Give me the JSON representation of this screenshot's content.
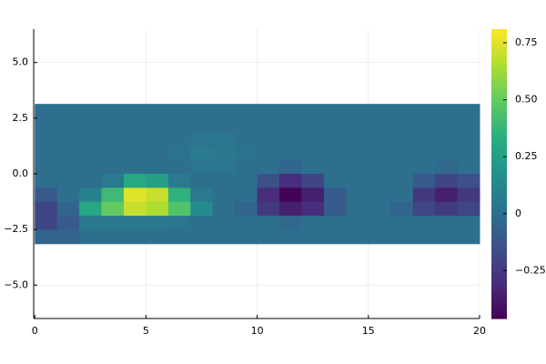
{
  "chart_data": {
    "type": "heatmap",
    "colormap": "viridis",
    "x_extent": [
      0,
      20
    ],
    "y_extent": [
      -3.14,
      3.14
    ],
    "xlim": [
      -0.05,
      20
    ],
    "ylim": [
      -6.5,
      6.5
    ],
    "xticks": [
      0,
      5,
      10,
      15,
      20
    ],
    "yticks": [
      {
        "value": 5,
        "label": "5.0"
      },
      {
        "value": 2.5,
        "label": "2.5"
      },
      {
        "value": 0,
        "label": "0.0"
      },
      {
        "value": -2.5,
        "label": "−2.5"
      },
      {
        "value": -5,
        "label": "−5.0"
      }
    ],
    "clim": [
      -0.46,
      0.81
    ],
    "cticks": [
      {
        "value": 0.75,
        "label": "0.75"
      },
      {
        "value": 0.5,
        "label": "0.50"
      },
      {
        "value": 0.25,
        "label": "0.25"
      },
      0,
      {
        "value": -0.25,
        "label": "−0.25"
      }
    ],
    "grid": true,
    "z": [
      [
        0,
        0,
        0,
        0,
        0,
        0,
        0,
        0,
        0,
        0,
        0,
        0,
        0,
        0,
        0,
        0,
        0,
        0,
        0,
        0
      ],
      [
        0,
        0,
        0,
        0,
        0,
        0,
        0,
        0,
        0,
        0,
        0,
        0,
        0,
        0,
        0,
        0,
        0,
        0,
        0,
        0
      ],
      [
        0,
        0,
        0,
        0,
        0,
        0,
        0,
        0.03,
        0.03,
        0,
        0,
        0,
        0,
        0,
        0,
        0,
        0,
        0,
        0,
        0
      ],
      [
        0,
        0,
        0,
        0,
        0,
        0,
        0.02,
        0.06,
        0.05,
        0.02,
        0,
        0,
        0,
        0,
        0,
        0,
        0,
        0,
        0,
        0
      ],
      [
        0,
        0,
        0,
        0,
        0,
        0,
        0,
        0.03,
        0.03,
        0,
        0,
        -0.05,
        0,
        0,
        0,
        0,
        0,
        0,
        -0.03,
        0
      ],
      [
        0,
        0,
        0,
        0.05,
        0.3,
        0.25,
        0.05,
        0,
        0,
        0,
        -0.15,
        -0.3,
        -0.2,
        0,
        0,
        0,
        0,
        -0.1,
        -0.2,
        -0.15
      ],
      [
        -0.1,
        0,
        0.1,
        0.4,
        0.75,
        0.7,
        0.35,
        0.05,
        0,
        0,
        -0.3,
        -0.45,
        -0.35,
        -0.1,
        0,
        0,
        0,
        -0.25,
        -0.35,
        -0.25
      ],
      [
        -0.2,
        -0.05,
        0.3,
        0.5,
        0.7,
        0.65,
        0.45,
        0.15,
        0,
        -0.05,
        -0.25,
        -0.35,
        -0.3,
        -0.1,
        0,
        0,
        -0.05,
        -0.2,
        -0.25,
        -0.2
      ],
      [
        -0.2,
        -0.1,
        0.05,
        0.05,
        0.05,
        0.05,
        0.03,
        0,
        0,
        0,
        0,
        -0.03,
        0,
        0,
        0,
        0,
        0,
        0,
        0,
        0
      ],
      [
        -0.05,
        -0.05,
        0,
        0,
        0,
        0,
        0,
        0,
        0,
        0,
        0,
        0,
        0,
        0,
        0,
        0,
        0,
        0,
        0,
        0
      ]
    ]
  }
}
